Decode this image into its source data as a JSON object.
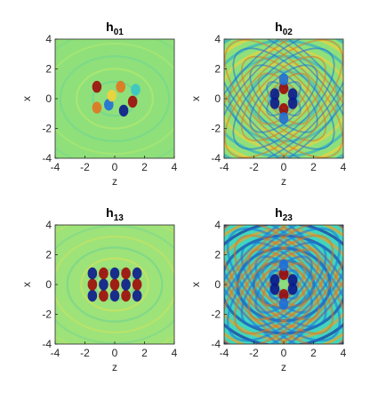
{
  "chart_data": [
    {
      "type": "heatmap",
      "title": "h",
      "title_sub": "01",
      "xlabel": "z",
      "ylabel": "x",
      "xlim": [
        -4,
        4
      ],
      "ylim": [
        -4,
        4
      ],
      "xticks": [
        "-4",
        "-2",
        "0",
        "2",
        "4"
      ],
      "yticks": [
        "-4",
        "-2",
        "0",
        "2",
        "4"
      ],
      "background": "#8fe07a",
      "pattern": {
        "rings": 6,
        "core": "blobs-asym",
        "ring_color": "#c9ee6a",
        "ring_dark": "#5fd0a0"
      }
    },
    {
      "type": "heatmap",
      "title": "h",
      "title_sub": "02",
      "xlabel": "z",
      "ylabel": "x",
      "xlim": [
        -4,
        4
      ],
      "ylim": [
        -4,
        4
      ],
      "xticks": [
        "-4",
        "-2",
        "0",
        "2",
        "4"
      ],
      "yticks": [
        "-4",
        "-2",
        "0",
        "2",
        "4"
      ],
      "background": "#8fe07a",
      "pattern": {
        "rings": 10,
        "core": "cross",
        "ring_color": "#f2d23a",
        "ring_dark": "#2fb0c8"
      }
    },
    {
      "type": "heatmap",
      "title": "h",
      "title_sub": "13",
      "xlabel": "z",
      "ylabel": "x",
      "xlim": [
        -4,
        4
      ],
      "ylim": [
        -4,
        4
      ],
      "xticks": [
        "-4",
        "-2",
        "0",
        "2",
        "4"
      ],
      "yticks": [
        "-4",
        "-2",
        "0",
        "2",
        "4"
      ],
      "background": "#9ee27a",
      "pattern": {
        "rings": 7,
        "core": "grid",
        "ring_color": "#e8e44e",
        "ring_dark": "#56cc9e"
      }
    },
    {
      "type": "heatmap",
      "title": "h",
      "title_sub": "23",
      "xlabel": "z",
      "ylabel": "x",
      "xlim": [
        -4,
        4
      ],
      "ylim": [
        -4,
        4
      ],
      "xticks": [
        "-4",
        "-2",
        "0",
        "2",
        "4"
      ],
      "yticks": [
        "-4",
        "-2",
        "0",
        "2",
        "4"
      ],
      "background": "#3fd6c0",
      "pattern": {
        "rings": 12,
        "core": "cross-strong",
        "ring_color": "#f0a020",
        "ring_dark": "#1a2fa0"
      }
    }
  ],
  "colors": {
    "colormap": [
      "#0a1a8c",
      "#1f6fd8",
      "#36c8c8",
      "#8fe07a",
      "#f2d23a",
      "#e2741f",
      "#9e0a0a"
    ]
  }
}
